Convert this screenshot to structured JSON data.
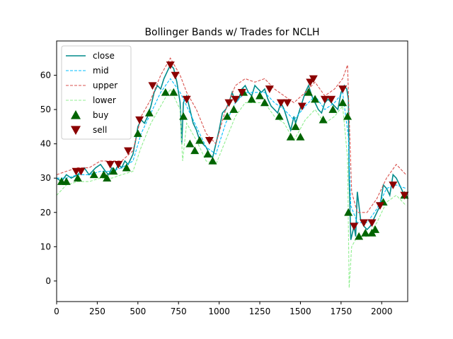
{
  "chart_data": {
    "type": "line",
    "title": "Bollinger Bands w/ Trades for NCLH",
    "xlabel": "",
    "ylabel": "",
    "xlim": [
      0,
      2160
    ],
    "ylim": [
      -6,
      70
    ],
    "xticks": [
      0,
      250,
      500,
      750,
      1000,
      1250,
      1500,
      1750,
      2000
    ],
    "yticks": [
      0,
      10,
      20,
      30,
      40,
      50,
      60
    ],
    "grid": false,
    "legend": "upper-left",
    "series": [
      {
        "name": "close",
        "style": "solid",
        "color": "#008b8b",
        "x": [
          0,
          30,
          60,
          90,
          130,
          150,
          170,
          200,
          240,
          270,
          300,
          320,
          340,
          360,
          380,
          400,
          420,
          440,
          470,
          490,
          500,
          520,
          540,
          560,
          580,
          600,
          620,
          640,
          660,
          680,
          700,
          720,
          740,
          760,
          770,
          780,
          800,
          820,
          840,
          860,
          880,
          900,
          920,
          940,
          960,
          980,
          1000,
          1020,
          1040,
          1060,
          1080,
          1100,
          1120,
          1140,
          1160,
          1180,
          1200,
          1220,
          1240,
          1260,
          1280,
          1300,
          1320,
          1340,
          1360,
          1380,
          1400,
          1420,
          1440,
          1460,
          1470,
          1490,
          1510,
          1530,
          1550,
          1570,
          1590,
          1610,
          1630,
          1650,
          1670,
          1690,
          1710,
          1730,
          1750,
          1770,
          1785,
          1795,
          1800,
          1810,
          1820,
          1830,
          1840,
          1850,
          1870,
          1890,
          1910,
          1930,
          1950,
          1970,
          1990,
          2010,
          2030,
          2050,
          2070,
          2090,
          2110,
          2130,
          2150
        ],
        "y": [
          30,
          29,
          31,
          30,
          31,
          32,
          33,
          31,
          33,
          34,
          32,
          31,
          33,
          32,
          34,
          33,
          35,
          34,
          37,
          42,
          45,
          47,
          46,
          48,
          51,
          55,
          57,
          56,
          59,
          61,
          63,
          62,
          58,
          52,
          40,
          52,
          54,
          50,
          46,
          44,
          41,
          40,
          39,
          37,
          36,
          40,
          44,
          49,
          50,
          52,
          55,
          52,
          53,
          56,
          57,
          55,
          54,
          57,
          56,
          55,
          56,
          53,
          51,
          50,
          49,
          52,
          50,
          47,
          44,
          48,
          46,
          49,
          52,
          55,
          57,
          54,
          52,
          50,
          49,
          52,
          53,
          52,
          51,
          50,
          55,
          57,
          56,
          53,
          30,
          12,
          14,
          16,
          13,
          26,
          18,
          16,
          15,
          16,
          18,
          20,
          22,
          28,
          27,
          25,
          31,
          30,
          28,
          26,
          25
        ]
      },
      {
        "name": "mid",
        "style": "dashed",
        "color": "#00bfff",
        "x": [
          0,
          60,
          130,
          200,
          270,
          340,
          400,
          470,
          520,
          580,
          640,
          700,
          760,
          800,
          860,
          920,
          980,
          1040,
          1100,
          1160,
          1220,
          1280,
          1340,
          1400,
          1460,
          1530,
          1590,
          1650,
          1710,
          1760,
          1795,
          1810,
          1850,
          1910,
          1970,
          2030,
          2090,
          2150
        ],
        "y": [
          30,
          30,
          31,
          31,
          32,
          32,
          33,
          35,
          43,
          49,
          55,
          59,
          55,
          51,
          45,
          39,
          37,
          46,
          52,
          55,
          55,
          55,
          52,
          50,
          47,
          51,
          54,
          50,
          52,
          55,
          42,
          22,
          17,
          17,
          21,
          27,
          28,
          27
        ]
      },
      {
        "name": "upper",
        "style": "dashed",
        "color": "#d9534f",
        "x": [
          0,
          60,
          130,
          200,
          270,
          340,
          400,
          470,
          520,
          580,
          640,
          700,
          760,
          800,
          860,
          920,
          980,
          1040,
          1100,
          1160,
          1220,
          1280,
          1340,
          1400,
          1460,
          1530,
          1590,
          1650,
          1710,
          1760,
          1790,
          1800,
          1815,
          1850,
          1910,
          1970,
          2030,
          2090,
          2150
        ],
        "y": [
          31,
          32,
          33,
          33,
          35,
          35,
          35,
          38,
          48,
          53,
          60,
          65,
          60,
          55,
          50,
          43,
          40,
          50,
          57,
          59,
          58,
          59,
          56,
          54,
          52,
          55,
          58,
          54,
          56,
          59,
          63,
          48,
          26,
          20,
          20,
          24,
          30,
          34,
          31
        ]
      },
      {
        "name": "lower",
        "style": "dashed",
        "color": "#90ee90",
        "x": [
          0,
          60,
          130,
          200,
          270,
          340,
          400,
          470,
          520,
          580,
          640,
          700,
          760,
          775,
          800,
          860,
          920,
          980,
          1040,
          1100,
          1160,
          1220,
          1280,
          1340,
          1400,
          1460,
          1530,
          1590,
          1650,
          1710,
          1760,
          1790,
          1800,
          1815,
          1850,
          1910,
          1970,
          2030,
          2090,
          2150
        ],
        "y": [
          25,
          28,
          29,
          29,
          30,
          30,
          31,
          32,
          39,
          46,
          51,
          56,
          50,
          35,
          46,
          41,
          35,
          34,
          41,
          48,
          52,
          52,
          52,
          48,
          46,
          41,
          47,
          50,
          46,
          48,
          51,
          36,
          -2,
          10,
          13,
          13,
          17,
          23,
          25,
          22
        ]
      },
      {
        "name": "buy",
        "style": "marker",
        "color": "#006400",
        "marker": "triangle-up",
        "x": [
          30,
          60,
          130,
          230,
          290,
          310,
          350,
          430,
          500,
          570,
          670,
          720,
          780,
          820,
          850,
          880,
          930,
          960,
          1050,
          1090,
          1150,
          1200,
          1250,
          1280,
          1370,
          1440,
          1470,
          1500,
          1550,
          1590,
          1640,
          1700,
          1760,
          1790,
          1795,
          1860,
          1900,
          1940,
          1960,
          2010,
          2140
        ],
        "y": [
          29,
          29,
          30,
          31,
          31,
          30,
          32,
          33,
          43,
          49,
          55,
          55,
          48,
          40,
          38,
          41,
          37,
          35,
          48,
          50,
          55,
          53,
          54,
          52,
          48,
          42,
          45,
          42,
          55,
          53,
          47,
          50,
          52,
          48,
          20,
          13,
          14,
          14,
          15,
          23,
          25
        ]
      },
      {
        "name": "sell",
        "style": "marker",
        "color": "#8b0000",
        "marker": "triangle-down",
        "x": [
          120,
          150,
          330,
          380,
          440,
          510,
          590,
          700,
          730,
          800,
          940,
          1060,
          1100,
          1140,
          1310,
          1380,
          1420,
          1510,
          1560,
          1580,
          1650,
          1690,
          1760,
          1830,
          1890,
          1940,
          1990,
          2070,
          2140
        ],
        "y": [
          32,
          32,
          34,
          34,
          38,
          47,
          57,
          63,
          60,
          53,
          41,
          52,
          53,
          55,
          56,
          52,
          52,
          51,
          58,
          59,
          53,
          53,
          56,
          16,
          17,
          17,
          22,
          28,
          25
        ]
      }
    ]
  }
}
